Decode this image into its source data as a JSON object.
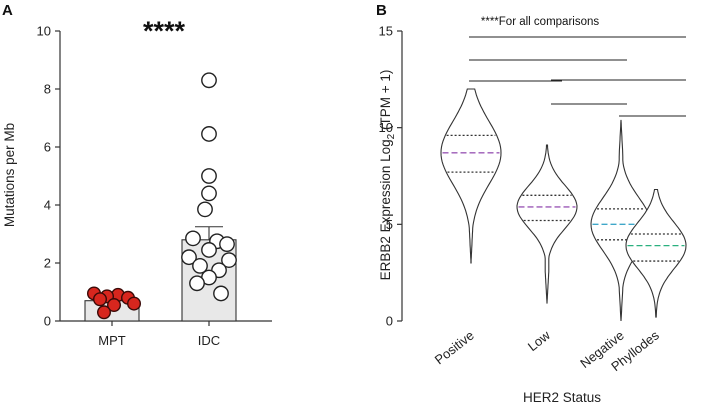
{
  "figure": {
    "panel_a_letter": "A",
    "panel_b_letter": "B"
  },
  "chart_data": [
    {
      "type": "bar",
      "panel": "A",
      "title": "",
      "xlabel": "",
      "ylabel": "Mutations per Mb",
      "ylim": [
        0,
        10
      ],
      "yticks": [
        "0",
        "2",
        "4",
        "6",
        "8",
        "10"
      ],
      "categories": [
        "MPT",
        "IDC"
      ],
      "values": [
        0.7,
        2.8
      ],
      "error_upper": [
        null,
        3.25
      ],
      "significance": "****",
      "points": {
        "MPT": [
          0.95,
          0.9,
          0.85,
          0.8,
          0.75,
          0.6,
          0.55,
          0.3
        ],
        "IDC": [
          8.3,
          6.45,
          5.0,
          4.4,
          3.85,
          2.85,
          2.75,
          2.65,
          2.45,
          2.2,
          2.1,
          1.9,
          1.75,
          1.5,
          1.3,
          0.95
        ]
      },
      "colors": {
        "MPT": "#d7261e",
        "IDC": "#ffffff",
        "bar": "#e8e8e8"
      }
    },
    {
      "type": "violin",
      "panel": "B",
      "title": "",
      "xlabel": "HER2 Status",
      "ylabel_main": "ERBB2 Expression Log",
      "ylabel_sub": "2",
      "ylabel_tail": " (TPM + 1)",
      "ylim": [
        0,
        15
      ],
      "yticks": [
        "0",
        "5",
        "10",
        "15"
      ],
      "categories": [
        "Positive",
        "Low",
        "Negative",
        "Phyllodes"
      ],
      "annotation": "****For all comparisons",
      "violins": [
        {
          "name": "Positive",
          "min": 3.0,
          "max": 12.0,
          "q1": 7.7,
          "median": 8.7,
          "q3": 9.6,
          "median_color": "#9b59b6"
        },
        {
          "name": "Low",
          "min": 0.9,
          "max": 9.1,
          "q1": 5.2,
          "median": 5.9,
          "q3": 6.5,
          "median_color": "#9b59b6"
        },
        {
          "name": "Negative",
          "min": 0.0,
          "max": 10.4,
          "q1": 4.2,
          "median": 5.0,
          "q3": 5.8,
          "median_color": "#3fa7c9"
        },
        {
          "name": "Phyllodes",
          "min": 0.2,
          "max": 6.8,
          "q1": 3.1,
          "median": 3.9,
          "q3": 4.5,
          "median_color": "#2ab07f"
        }
      ],
      "comparisons": [
        [
          "Positive",
          "Phyllodes"
        ],
        [
          "Positive",
          "Negative"
        ],
        [
          "Positive",
          "Low"
        ],
        [
          "Low",
          "Phyllodes"
        ],
        [
          "Low",
          "Negative"
        ],
        [
          "Negative",
          "Phyllodes"
        ]
      ]
    }
  ]
}
